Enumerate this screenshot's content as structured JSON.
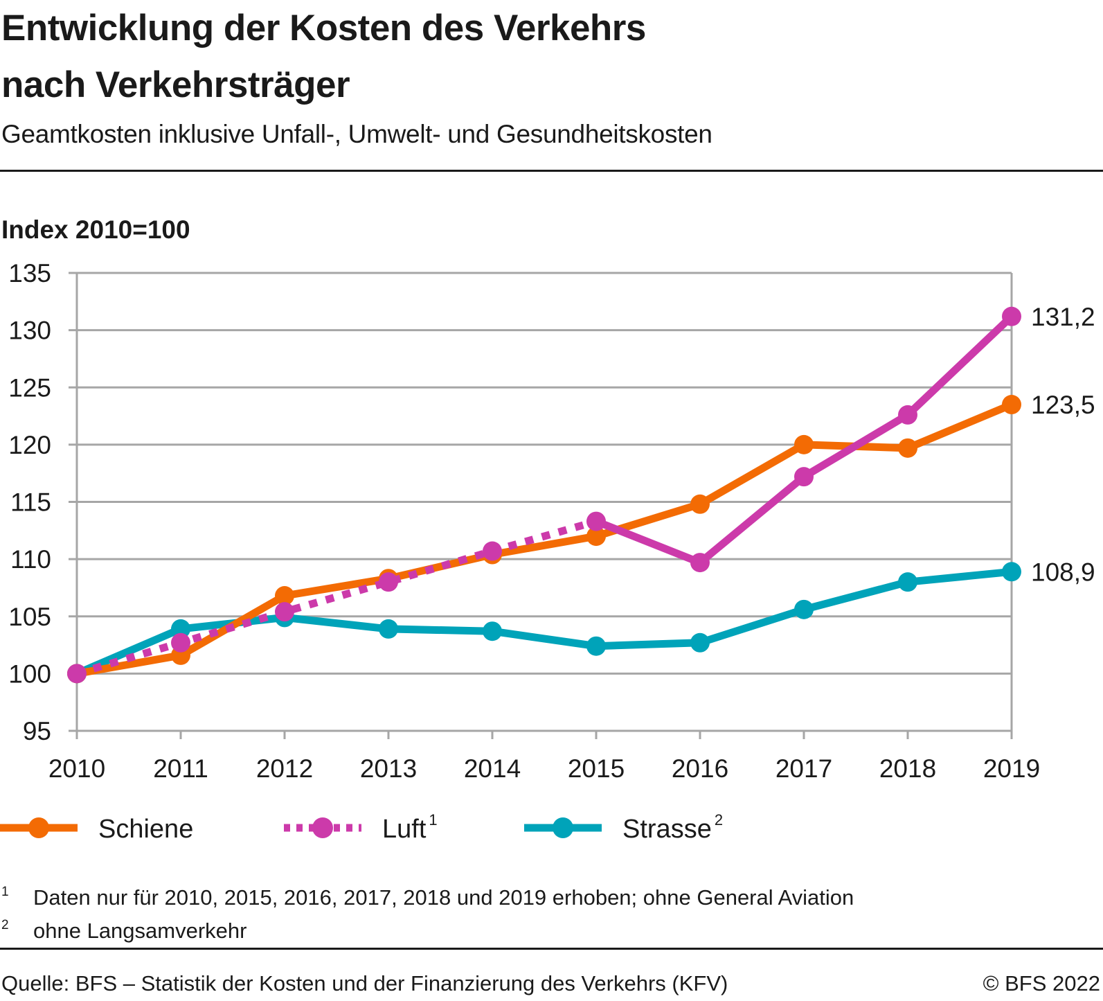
{
  "header": {
    "title_line1": "Entwicklung der Kosten des Verkehrs",
    "title_line2": "nach Verkehrsträger",
    "subtitle": "Geamtkosten inklusive Unfall-, Umwelt- und Gesundheitskosten"
  },
  "colors": {
    "schiene": "#F36B04",
    "luft": "#CC3AAA",
    "strasse": "#00A3B9",
    "grid": "#A6A6A6",
    "text": "#1A1A1A"
  },
  "chart_data": {
    "type": "line",
    "title": "Entwicklung der Kosten des Verkehrs nach Verkehrsträger",
    "subtitle": "Geamtkosten inklusive Unfall-, Umwelt- und Gesundheitskosten",
    "ylabel": "Index 2010=100",
    "xlabel": "",
    "x": [
      "2010",
      "2011",
      "2012",
      "2013",
      "2014",
      "2015",
      "2016",
      "2017",
      "2018",
      "2019"
    ],
    "ylim": [
      95,
      135
    ],
    "yticks": [
      "95",
      "100",
      "105",
      "110",
      "115",
      "120",
      "125",
      "130",
      "135"
    ],
    "grid": true,
    "legend_position": "bottom",
    "series": [
      {
        "name": "Schiene",
        "sup": "",
        "color_key": "schiene",
        "style": "solid",
        "values": [
          100,
          101.6,
          106.8,
          108.3,
          110.4,
          112.0,
          114.8,
          120.0,
          119.7,
          123.5
        ],
        "end_label": "123,5"
      },
      {
        "name": "Luft",
        "sup": "1",
        "color_key": "luft",
        "style": "solid-with-dotted-interpolation",
        "dotted_until_index": 5,
        "values": [
          100,
          102.7,
          105.4,
          108.0,
          110.7,
          113.3,
          109.7,
          117.2,
          122.6,
          131.2
        ],
        "end_label": "131,2"
      },
      {
        "name": "Strasse",
        "sup": "2",
        "color_key": "strasse",
        "style": "solid",
        "values": [
          100,
          103.9,
          104.9,
          103.9,
          103.7,
          102.4,
          102.7,
          105.6,
          108.0,
          108.9
        ],
        "end_label": "108,9"
      }
    ]
  },
  "footnotes": [
    {
      "num": "1",
      "text": "Daten nur für 2010, 2015, 2016, 2017, 2018 und 2019 erhoben; ohne General Aviation"
    },
    {
      "num": "2",
      "text": "ohne Langsamverkehr"
    }
  ],
  "footer": {
    "source": "Quelle: BFS – Statistik der Kosten und der Finanzierung des Verkehrs (KFV)",
    "copyright": "© BFS 2022"
  }
}
